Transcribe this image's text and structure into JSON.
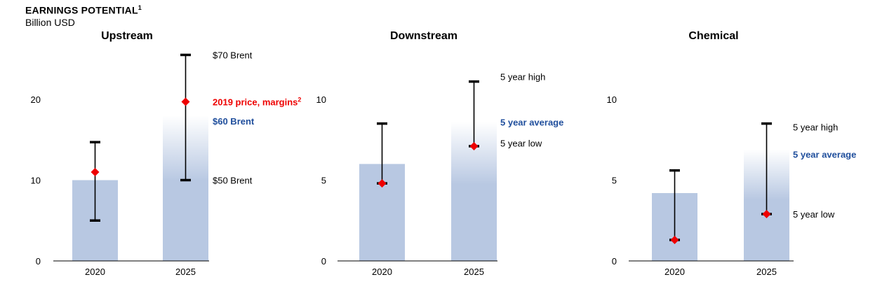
{
  "header": {
    "title": "EARNINGS POTENTIAL",
    "title_sup": "1",
    "unit": "Billion USD"
  },
  "colors": {
    "bar": "#b8c8e2",
    "marker": "#ee0000",
    "average_label": "#1f4e9c",
    "whisker": "#000000"
  },
  "chart_data": [
    {
      "type": "bar",
      "title": "Upstream",
      "categories": [
        "2020",
        "2025"
      ],
      "ylim": [
        0,
        25
      ],
      "yticks": [
        0,
        10,
        20
      ],
      "bars": [
        {
          "category": "2020",
          "value": 10,
          "low": 5,
          "high": 14.7,
          "marker": 11
        },
        {
          "category": "2025",
          "value": 18,
          "fade": true,
          "low": 10,
          "high": 25.5,
          "marker": 19.7
        }
      ],
      "annotations": [
        {
          "text": "$70 Brent",
          "y": 25.5,
          "style": "plain"
        },
        {
          "text": "2019 price, margins",
          "sup": "2",
          "y": 19.7,
          "style": "marker"
        },
        {
          "text": "$60 Brent",
          "y": 17.3,
          "style": "average"
        },
        {
          "text": "$50 Brent",
          "y": 10,
          "style": "plain"
        }
      ]
    },
    {
      "type": "bar",
      "title": "Downstream",
      "categories": [
        "2020",
        "2025"
      ],
      "ylim": [
        0,
        12.5
      ],
      "yticks": [
        0,
        5,
        10
      ],
      "bars": [
        {
          "category": "2020",
          "value": 6,
          "low": 4.8,
          "high": 8.5,
          "marker": 4.8
        },
        {
          "category": "2025",
          "value": 8.6,
          "fade": true,
          "low": 7.1,
          "high": 11.1,
          "marker": 7.1
        }
      ],
      "annotations": [
        {
          "text": "5 year high",
          "y": 11.4,
          "style": "plain"
        },
        {
          "text": "5 year average",
          "y": 8.6,
          "style": "average"
        },
        {
          "text": "5 year low",
          "y": 7.3,
          "style": "plain"
        }
      ]
    },
    {
      "type": "bar",
      "title": "Chemical",
      "categories": [
        "2020",
        "2025"
      ],
      "ylim": [
        0,
        12.5
      ],
      "yticks": [
        0,
        5,
        10
      ],
      "bars": [
        {
          "category": "2020",
          "value": 4.2,
          "low": 1.3,
          "high": 5.6,
          "marker": 1.3
        },
        {
          "category": "2025",
          "value": 6.9,
          "fade": true,
          "low": 2.9,
          "high": 8.5,
          "marker": 2.9
        }
      ],
      "annotations": [
        {
          "text": "5 year high",
          "y": 8.3,
          "style": "plain"
        },
        {
          "text": "5 year average",
          "y": 6.6,
          "style": "average"
        },
        {
          "text": "5 year low",
          "y": 2.9,
          "style": "plain"
        }
      ]
    }
  ]
}
